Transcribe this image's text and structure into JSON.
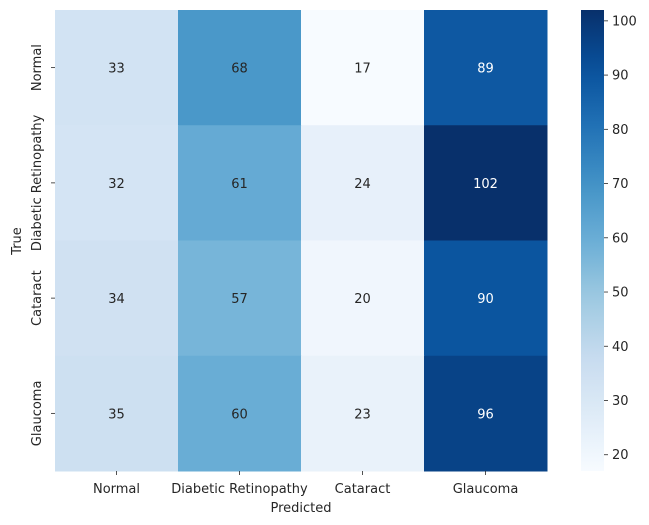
{
  "chart_data": {
    "type": "heatmap",
    "x_categories": [
      "Normal",
      "Diabetic Retinopathy",
      "Cataract",
      "Glaucoma"
    ],
    "y_categories": [
      "Normal",
      "Diabetic Retinopathy",
      "Cataract",
      "Glaucoma"
    ],
    "values": [
      [
        33,
        68,
        17,
        89
      ],
      [
        32,
        61,
        24,
        102
      ],
      [
        34,
        57,
        20,
        90
      ],
      [
        35,
        60,
        23,
        96
      ]
    ],
    "xlabel": "Predicted",
    "ylabel": "True",
    "colormap": "Blues",
    "vmin": 17,
    "vmax": 102,
    "colorbar_ticks": [
      20,
      30,
      40,
      50,
      60,
      70,
      80,
      90,
      100
    ],
    "annotate": true
  }
}
